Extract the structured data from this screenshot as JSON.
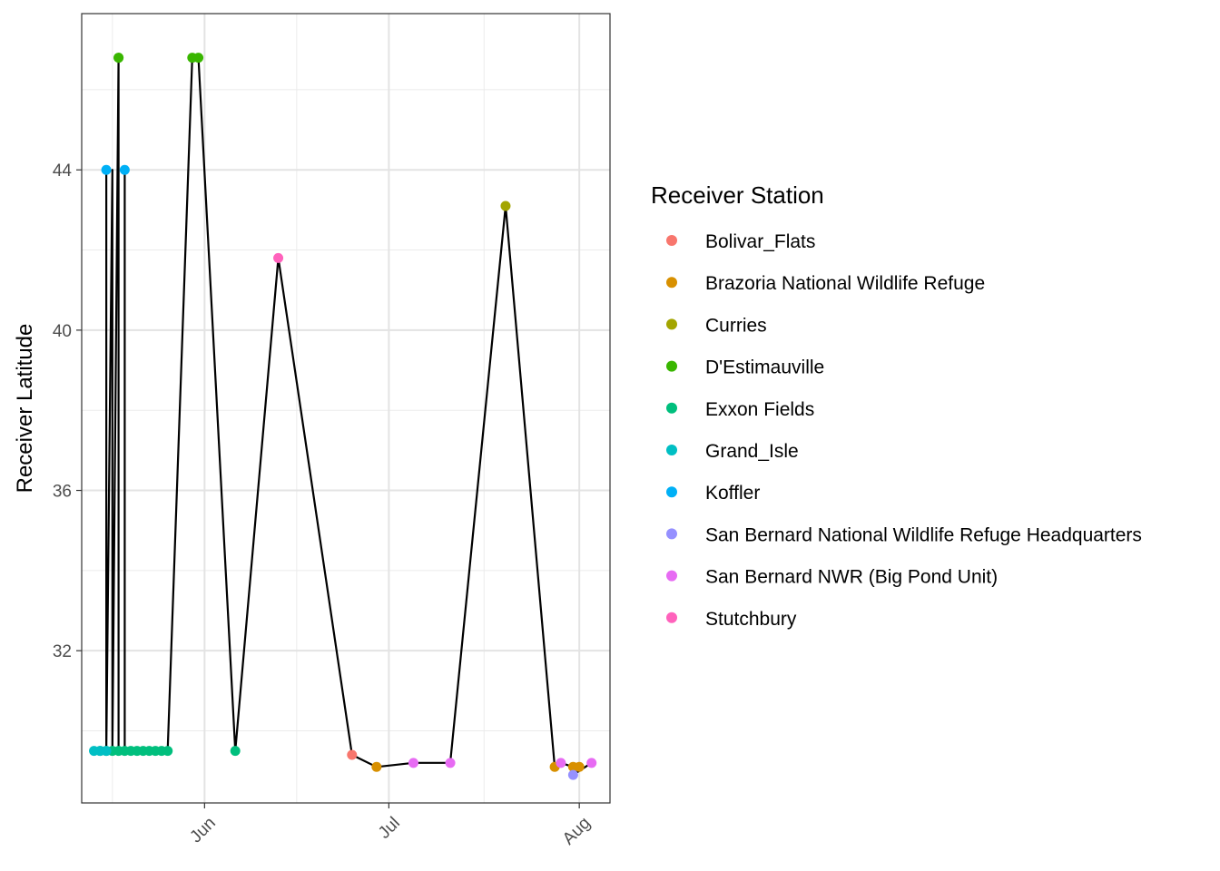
{
  "chart_data": {
    "type": "scatter",
    "ylabel": "Receiver Latitude",
    "xlabel": "",
    "grid": true,
    "legend_position": "right",
    "x_ticks": [
      {
        "label": "Jun",
        "date": "2023-06-01"
      },
      {
        "label": "Jul",
        "date": "2023-07-01"
      },
      {
        "label": "Aug",
        "date": "2023-08-01"
      }
    ],
    "y_ticks": [
      32,
      36,
      40,
      44
    ],
    "xlim": [
      "2023-05-12",
      "2023-08-06"
    ],
    "ylim": [
      28.2,
      47.9
    ],
    "legend_title": "Receiver Station",
    "series": [
      {
        "name": "Bolivar_Flats",
        "color": "#F8766D",
        "points": [
          {
            "x": "2023-06-25",
            "y": 29.4
          }
        ]
      },
      {
        "name": "Brazoria National Wildlife Refuge",
        "color": "#D89000",
        "points": [
          {
            "x": "2023-06-29",
            "y": 29.1
          },
          {
            "x": "2023-07-28",
            "y": 29.1
          },
          {
            "x": "2023-07-31",
            "y": 29.1
          },
          {
            "x": "2023-08-01",
            "y": 29.1
          }
        ]
      },
      {
        "name": "Curries",
        "color": "#A3A500",
        "points": [
          {
            "x": "2023-07-20",
            "y": 43.1
          }
        ]
      },
      {
        "name": "D'Estimauville",
        "color": "#39B600",
        "points": [
          {
            "x": "2023-05-18",
            "y": 46.8
          },
          {
            "x": "2023-05-18",
            "y": 46.8
          },
          {
            "x": "2023-05-30",
            "y": 46.8
          },
          {
            "x": "2023-05-31",
            "y": 46.8
          }
        ]
      },
      {
        "name": "Exxon Fields",
        "color": "#00BF7D",
        "points": [
          {
            "x": "2023-05-15",
            "y": 29.5
          },
          {
            "x": "2023-05-16",
            "y": 29.5
          },
          {
            "x": "2023-05-17",
            "y": 29.5
          },
          {
            "x": "2023-05-18",
            "y": 29.5
          },
          {
            "x": "2023-05-19",
            "y": 29.5
          },
          {
            "x": "2023-05-20",
            "y": 29.5
          },
          {
            "x": "2023-05-21",
            "y": 29.5
          },
          {
            "x": "2023-05-22",
            "y": 29.5
          },
          {
            "x": "2023-05-23",
            "y": 29.5
          },
          {
            "x": "2023-05-24",
            "y": 29.5
          },
          {
            "x": "2023-05-25",
            "y": 29.5
          },
          {
            "x": "2023-05-26",
            "y": 29.5
          },
          {
            "x": "2023-06-06",
            "y": 29.5
          }
        ]
      },
      {
        "name": "Grand_Isle",
        "color": "#00BFC4",
        "points": [
          {
            "x": "2023-05-14",
            "y": 29.5
          },
          {
            "x": "2023-05-15",
            "y": 29.5
          },
          {
            "x": "2023-05-16",
            "y": 29.5
          }
        ]
      },
      {
        "name": "Koffler",
        "color": "#00B0F6",
        "points": [
          {
            "x": "2023-05-16",
            "y": 44.0
          },
          {
            "x": "2023-05-19",
            "y": 44.0
          }
        ]
      },
      {
        "name": "San Bernard National Wildlife Refuge Headquarters",
        "color": "#9590FF",
        "points": [
          {
            "x": "2023-07-31",
            "y": 28.9
          }
        ]
      },
      {
        "name": "San Bernard NWR (Big Pond Unit)",
        "color": "#E76BF3",
        "points": [
          {
            "x": "2023-07-05",
            "y": 29.2
          },
          {
            "x": "2023-07-11",
            "y": 29.2
          },
          {
            "x": "2023-07-29",
            "y": 29.2
          },
          {
            "x": "2023-08-03",
            "y": 29.2
          }
        ]
      },
      {
        "name": "Stutchbury",
        "color": "#FF62BC",
        "points": [
          {
            "x": "2023-06-13",
            "y": 41.8
          }
        ]
      }
    ],
    "track": [
      {
        "x": "2023-05-15",
        "y": 29.5
      },
      {
        "x": "2023-05-16",
        "y": 29.5
      },
      {
        "x": "2023-05-16",
        "y": 44.0
      },
      {
        "x": "2023-05-16",
        "y": 29.5
      },
      {
        "x": "2023-05-17",
        "y": 44.0
      },
      {
        "x": "2023-05-17",
        "y": 29.5
      },
      {
        "x": "2023-05-17",
        "y": 44.0
      },
      {
        "x": "2023-05-17",
        "y": 29.5
      },
      {
        "x": "2023-05-17",
        "y": 44.0
      },
      {
        "x": "2023-05-17",
        "y": 29.5
      },
      {
        "x": "2023-05-18",
        "y": 46.8
      },
      {
        "x": "2023-05-18",
        "y": 29.5
      },
      {
        "x": "2023-05-19",
        "y": 29.5
      },
      {
        "x": "2023-05-19",
        "y": 44.0
      },
      {
        "x": "2023-05-19",
        "y": 29.5
      },
      {
        "x": "2023-05-26",
        "y": 29.5
      },
      {
        "x": "2023-05-26",
        "y": 29.5
      },
      {
        "x": "2023-05-30",
        "y": 46.8
      },
      {
        "x": "2023-05-31",
        "y": 46.8
      },
      {
        "x": "2023-06-06",
        "y": 29.5
      },
      {
        "x": "2023-06-13",
        "y": 41.8
      },
      {
        "x": "2023-06-25",
        "y": 29.4
      },
      {
        "x": "2023-06-29",
        "y": 29.1
      },
      {
        "x": "2023-07-05",
        "y": 29.2
      },
      {
        "x": "2023-07-11",
        "y": 29.2
      },
      {
        "x": "2023-07-20",
        "y": 43.1
      },
      {
        "x": "2023-07-28",
        "y": 29.1
      },
      {
        "x": "2023-07-29",
        "y": 29.2
      },
      {
        "x": "2023-07-31",
        "y": 29.1
      },
      {
        "x": "2023-08-01",
        "y": 29.1
      },
      {
        "x": "2023-07-31",
        "y": 28.9
      },
      {
        "x": "2023-08-03",
        "y": 29.2
      }
    ]
  }
}
